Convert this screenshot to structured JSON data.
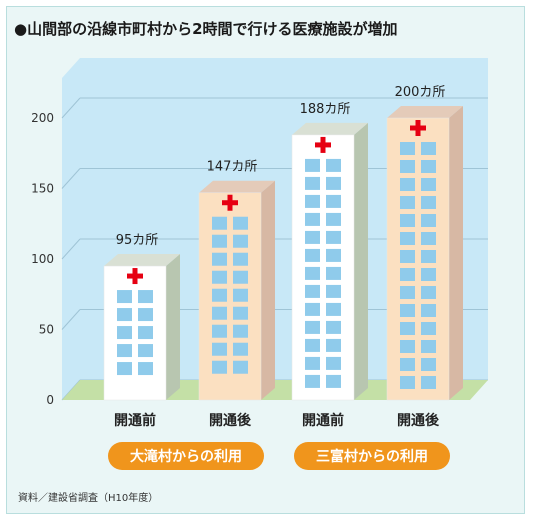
{
  "title": "●山間部の沿線市町村から2時間で行ける医療施設が増加",
  "source_note": "資料／建設省調査（H10年度）",
  "chart_data": {
    "type": "bar",
    "title": "山間部の沿線市町村から2時間で行ける医療施設が増加",
    "ylim": [
      0,
      200
    ],
    "yticks": [
      0,
      50,
      100,
      150,
      200
    ],
    "categories": [
      "開通前",
      "開通後",
      "開通前",
      "開通後"
    ],
    "values": [
      95,
      147,
      188,
      200
    ],
    "value_labels": [
      "95カ所",
      "147カ所",
      "188カ所",
      "200カ所"
    ],
    "groups": [
      {
        "label": "大滝村からの利用",
        "members": [
          0,
          1
        ]
      },
      {
        "label": "三富村からの利用",
        "members": [
          2,
          3
        ]
      }
    ],
    "grid": true
  },
  "colors": {
    "plot_background": "#c8e8f7",
    "floor": "#c4e0a6",
    "before_front": "#ffffff",
    "before_side": "#b8c6b0",
    "before_top": "#d9e0d4",
    "after_front": "#fbe0c1",
    "after_side": "#d7b8a4",
    "after_top": "#e4cbb9",
    "window": "#8fcbeb",
    "cross": "#e60012",
    "pill": "#f0951c"
  }
}
